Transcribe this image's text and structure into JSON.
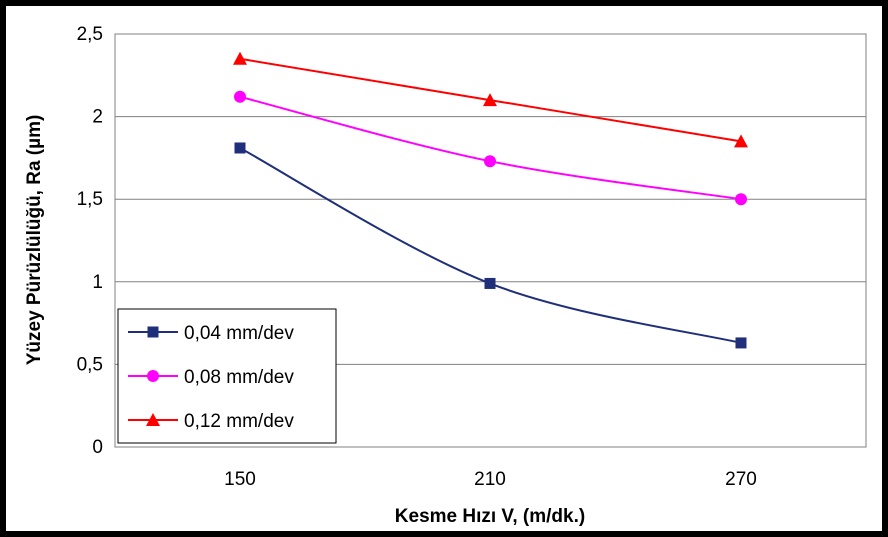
{
  "chart_data": {
    "type": "line",
    "xlabel": "Kesme Hızı V, (m/dk.)",
    "ylabel": "Yüzey Pürüzlülüğü,  Ra (µm)",
    "categories": [
      "150",
      "210",
      "270"
    ],
    "ylim": [
      0,
      2.5
    ],
    "yticks": [
      "0",
      "0,5",
      "1",
      "1,5",
      "2",
      "2,5"
    ],
    "grid": "horizontal",
    "legend_position": "bottom-left",
    "series": [
      {
        "name": "0,04 mm/dev",
        "values": [
          1.81,
          0.99,
          0.63
        ],
        "color": "#1f2f7a",
        "marker": "square"
      },
      {
        "name": "0,08 mm/dev",
        "values": [
          2.12,
          1.73,
          1.5
        ],
        "color": "#ff00ff",
        "marker": "circle"
      },
      {
        "name": "0,12 mm/dev",
        "values": [
          2.35,
          2.1,
          1.85
        ],
        "color": "#ff0000",
        "marker": "triangle"
      }
    ]
  }
}
